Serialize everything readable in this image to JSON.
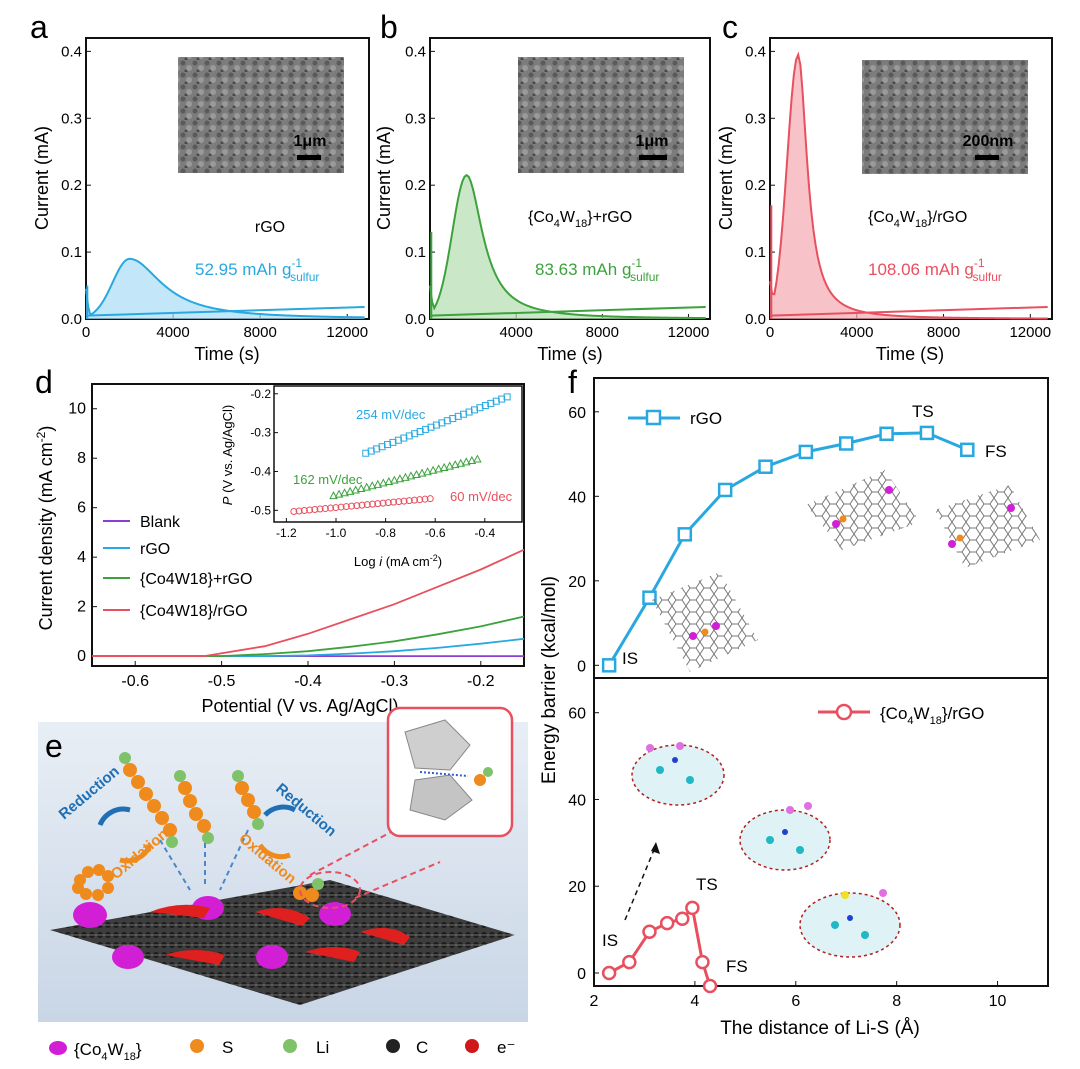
{
  "panels": {
    "a": {
      "letter": "a",
      "label": "rGO",
      "capacity": "52.95 mAh g",
      "cap_sup": "-1",
      "cap_sub": "sulfur",
      "scale": "1μm",
      "xlabel": "Time (s)",
      "ylabel": "Current (mA)",
      "color": "#29a8e0",
      "fill": "#a9ddf5"
    },
    "b": {
      "letter": "b",
      "label_pre": "{Co",
      "label_s1": "4",
      "label_mid": "W",
      "label_s2": "18",
      "label_post": "}+rGO",
      "capacity": "83.63 mAh g",
      "cap_sup": "-1",
      "cap_sub": "sulfur",
      "scale": "1μm",
      "xlabel": "Time (s)",
      "ylabel": "Current (mA)",
      "color": "#3da23d",
      "fill": "#b4deb0"
    },
    "c": {
      "letter": "c",
      "label_pre": "{Co",
      "label_s1": "4",
      "label_mid": "W",
      "label_s2": "18",
      "label_post": "}/rGO",
      "capacity": "108.06 mAh g",
      "cap_sup": "-1",
      "cap_sub": "sulfur",
      "scale": "200nm",
      "xlabel": "Time (S)",
      "ylabel": "Current (mA)",
      "color": "#e8505f",
      "fill": "#f4a9b0"
    },
    "d": {
      "letter": "d",
      "xlabel": "Potential (V vs. Ag/AgCl)",
      "ylabel_pre": "Current density (mA cm",
      "ylabel_sup": "-2",
      "ylabel_post": ")",
      "legend": [
        "Blank",
        "rGO",
        "{Co4W18}+rGO",
        "{Co4W18}/rGO"
      ],
      "inset_xlabel_pre": "Log ",
      "inset_xlabel_i": "i",
      "inset_xlabel_post": " (mA cm",
      "inset_xlabel_sup": "-2",
      "inset_xlabel_end": ")",
      "inset_ylabel_pre": "P",
      "inset_ylabel_post": " (V vs. Ag/AgCl)",
      "tafel": [
        "254 mV/dec",
        "162 mV/dec",
        "60 mV/dec"
      ]
    },
    "e": {
      "letter": "e",
      "reduction": "Reduction",
      "oxidation": "Oxidation",
      "legend": [
        {
          "name": "co4w18-legend",
          "label": "{Co4W18}"
        },
        {
          "name": "s",
          "label": "S"
        },
        {
          "name": "li",
          "label": "Li"
        },
        {
          "name": "c",
          "label": "C"
        },
        {
          "name": "e",
          "label": "e⁻"
        }
      ]
    },
    "f": {
      "letter": "f",
      "xlabel": "The distance of Li-S (Å)",
      "ylabel": "Energy barrier (kcal/mol)",
      "legend_top": "rGO",
      "legend_bot": "{Co4W18}/rGO",
      "is": "IS",
      "ts": "TS",
      "fs": "FS"
    }
  },
  "chart_data": [
    {
      "id": "a",
      "type": "area",
      "title": "rGO",
      "xlabel": "Time (s)",
      "ylabel": "Current (mA)",
      "xlim": [
        0,
        13000
      ],
      "ylim": [
        0,
        0.42
      ],
      "xticks": [
        0,
        4000,
        8000,
        12000
      ],
      "yticks": [
        0.0,
        0.1,
        0.2,
        0.3,
        0.4
      ],
      "peak": {
        "x": 2000,
        "y": 0.09
      },
      "capacity_mAh_g": 52.95
    },
    {
      "id": "b",
      "type": "area",
      "title": "{Co4W18}+rGO",
      "xlabel": "Time (s)",
      "ylabel": "Current (mA)",
      "xlim": [
        0,
        13000
      ],
      "ylim": [
        0,
        0.42
      ],
      "xticks": [
        0,
        4000,
        8000,
        12000
      ],
      "yticks": [
        0.0,
        0.1,
        0.2,
        0.3,
        0.4
      ],
      "peak": {
        "x": 1700,
        "y": 0.215
      },
      "capacity_mAh_g": 83.63
    },
    {
      "id": "c",
      "type": "area",
      "title": "{Co4W18}/rGO",
      "xlabel": "Time (S)",
      "ylabel": "Current (mA)",
      "xlim": [
        0,
        13000
      ],
      "ylim": [
        0,
        0.42
      ],
      "xticks": [
        0,
        4000,
        8000,
        12000
      ],
      "yticks": [
        0.0,
        0.1,
        0.2,
        0.3,
        0.4
      ],
      "peak": {
        "x": 1300,
        "y": 0.395
      },
      "capacity_mAh_g": 108.06
    },
    {
      "id": "d",
      "type": "line",
      "xlabel": "Potential (V vs. Ag/AgCl)",
      "ylabel": "Current density (mA cm-2)",
      "xlim": [
        -0.65,
        -0.15
      ],
      "ylim": [
        -0.4,
        11
      ],
      "xticks": [
        -0.6,
        -0.5,
        -0.4,
        -0.3,
        -0.2
      ],
      "yticks": [
        0,
        2,
        4,
        6,
        8,
        10
      ],
      "series": [
        {
          "name": "Blank",
          "color": "#8a3fd0",
          "x": [
            -0.65,
            -0.15
          ],
          "y": [
            0,
            0
          ]
        },
        {
          "name": "rGO",
          "color": "#29a8e0",
          "x": [
            -0.65,
            -0.45,
            -0.4,
            -0.35,
            -0.3,
            -0.25,
            -0.2,
            -0.15
          ],
          "y": [
            0,
            0,
            0.03,
            0.1,
            0.2,
            0.33,
            0.5,
            0.7
          ]
        },
        {
          "name": "{Co4W18}+rGO",
          "color": "#3da23d",
          "x": [
            -0.65,
            -0.5,
            -0.45,
            -0.4,
            -0.35,
            -0.3,
            -0.25,
            -0.2,
            -0.15
          ],
          "y": [
            0,
            0,
            0.08,
            0.2,
            0.38,
            0.6,
            0.88,
            1.2,
            1.6
          ]
        },
        {
          "name": "{Co4W18}/rGO",
          "color": "#e8505f",
          "x": [
            -0.65,
            -0.52,
            -0.45,
            -0.4,
            -0.35,
            -0.3,
            -0.25,
            -0.2,
            -0.15
          ],
          "y": [
            0,
            0,
            0.4,
            0.9,
            1.5,
            2.1,
            2.8,
            3.5,
            4.3
          ]
        }
      ],
      "inset": {
        "xlim": [
          -1.25,
          -0.25
        ],
        "ylim": [
          -0.53,
          -0.18
        ],
        "xticks": [
          -1.2,
          -1.0,
          -0.8,
          -0.6,
          -0.4
        ],
        "yticks": [
          -0.2,
          -0.3,
          -0.4,
          -0.5
        ],
        "series": [
          {
            "name": "rGO",
            "slope": "254 mV/dec",
            "x0": -0.88,
            "x1": -0.31,
            "y0": -0.353,
            "y1": -0.208
          },
          {
            "name": "{Co4W18}+rGO",
            "slope": "162 mV/dec",
            "x0": -1.01,
            "x1": -0.43,
            "y0": -0.462,
            "y1": -0.368
          },
          {
            "name": "{Co4W18}/rGO",
            "slope": "60 mV/dec",
            "x0": -1.17,
            "x1": -0.62,
            "y0": -0.503,
            "y1": -0.47
          }
        ]
      }
    },
    {
      "id": "f_top",
      "type": "line",
      "series_name": "rGO",
      "color": "#29a8e0",
      "xlim": [
        2,
        11
      ],
      "ylim": [
        -3,
        68
      ],
      "yticks": [
        0,
        20,
        40,
        60
      ],
      "x": [
        2.3,
        3.1,
        3.8,
        4.6,
        5.4,
        6.2,
        7.0,
        7.8,
        8.6,
        9.4
      ],
      "y": [
        0,
        16,
        31,
        41.5,
        47,
        50.5,
        52.5,
        54.8,
        55,
        51
      ]
    },
    {
      "id": "f_bottom",
      "type": "line",
      "series_name": "{Co4W18}/rGO",
      "color": "#e8505f",
      "xlim": [
        2,
        11
      ],
      "ylim": [
        -3,
        68
      ],
      "yticks": [
        0,
        20,
        40,
        60
      ],
      "xticks": [
        2,
        4,
        6,
        8,
        10
      ],
      "x": [
        2.3,
        2.7,
        3.1,
        3.45,
        3.75,
        3.95,
        4.15,
        4.3
      ],
      "y": [
        0,
        2.5,
        9.5,
        11.5,
        12.5,
        15,
        2.5,
        -3
      ]
    }
  ]
}
